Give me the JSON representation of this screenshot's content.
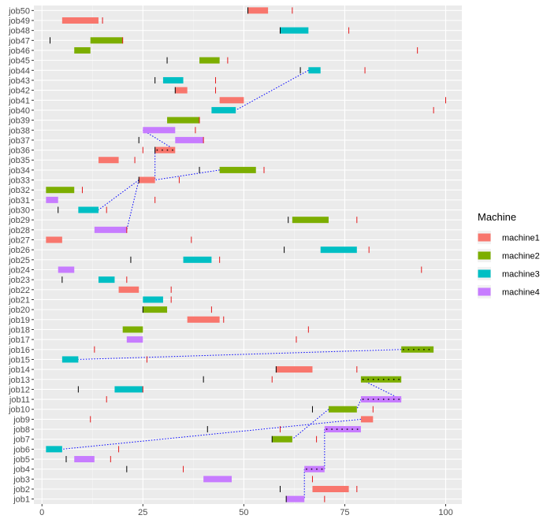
{
  "chart_data": {
    "type": "gantt",
    "xlim": [
      -2,
      104
    ],
    "x_ticks": [
      0,
      25,
      50,
      75,
      100
    ],
    "x_tick_labels": [
      "0",
      "25",
      "50",
      "75",
      "100"
    ],
    "grid": true,
    "legend": {
      "title": "Machine",
      "placement": "right",
      "items": [
        {
          "name": "machine1",
          "color": "#F8766D"
        },
        {
          "name": "machine2",
          "color": "#7CAE00"
        },
        {
          "name": "machine3",
          "color": "#00BFC4"
        },
        {
          "name": "machine4",
          "color": "#C77CFF"
        }
      ]
    },
    "jobs": [
      {
        "job": "job1",
        "machine": "machine4",
        "start": 60.5,
        "end": 65,
        "release": 60.5,
        "due": 70
      },
      {
        "job": "job2",
        "machine": "machine1",
        "start": 67,
        "end": 76,
        "release": 59,
        "due": 78
      },
      {
        "job": "job3",
        "machine": "machine4",
        "start": 40,
        "end": 47,
        "release": null,
        "due": 67
      },
      {
        "job": "job4",
        "machine": "machine4",
        "start": 65,
        "end": 70,
        "release": 21,
        "due": 35,
        "critical": true
      },
      {
        "job": "job5",
        "machine": "machine4",
        "start": 8,
        "end": 13,
        "release": 6,
        "due": 17
      },
      {
        "job": "job6",
        "machine": "machine3",
        "start": 1,
        "end": 5,
        "release": null,
        "due": 19
      },
      {
        "job": "job7",
        "machine": "machine2",
        "start": 57,
        "end": 62,
        "release": 57,
        "due": 68
      },
      {
        "job": "job8",
        "machine": "machine4",
        "start": 70,
        "end": 79,
        "release": 41,
        "due": 59,
        "critical": true
      },
      {
        "job": "job9",
        "machine": "machine1",
        "start": 79,
        "end": 82,
        "release": null,
        "due": 12
      },
      {
        "job": "job10",
        "machine": "machine2",
        "start": 71,
        "end": 78,
        "release": 67,
        "due": 82
      },
      {
        "job": "job11",
        "machine": "machine4",
        "start": 79,
        "end": 89,
        "release": null,
        "due": 16,
        "critical": true
      },
      {
        "job": "job12",
        "machine": "machine3",
        "start": 18,
        "end": 25,
        "release": 9,
        "due": 25
      },
      {
        "job": "job13",
        "machine": "machine2",
        "start": 79,
        "end": 89,
        "release": 40,
        "due": 57,
        "critical": true
      },
      {
        "job": "job14",
        "machine": "machine1",
        "start": 58,
        "end": 67,
        "release": 58,
        "due": 78
      },
      {
        "job": "job15",
        "machine": "machine3",
        "start": 5,
        "end": 9,
        "release": null,
        "due": 26
      },
      {
        "job": "job16",
        "machine": "machine2",
        "start": 89,
        "end": 97,
        "release": null,
        "due": 13,
        "critical": true
      },
      {
        "job": "job17",
        "machine": "machine4",
        "start": 21,
        "end": 25,
        "release": null,
        "due": 63
      },
      {
        "job": "job18",
        "machine": "machine2",
        "start": 20,
        "end": 25,
        "release": null,
        "due": 66
      },
      {
        "job": "job19",
        "machine": "machine1",
        "start": 36,
        "end": 44,
        "release": null,
        "due": 45
      },
      {
        "job": "job20",
        "machine": "machine2",
        "start": 25,
        "end": 31,
        "release": 25,
        "due": 42
      },
      {
        "job": "job21",
        "machine": "machine3",
        "start": 25,
        "end": 30,
        "release": null,
        "due": 32
      },
      {
        "job": "job22",
        "machine": "machine1",
        "start": 19,
        "end": 24,
        "release": null,
        "due": 32
      },
      {
        "job": "job23",
        "machine": "machine3",
        "start": 14,
        "end": 18,
        "release": 5,
        "due": 21
      },
      {
        "job": "job24",
        "machine": "machine4",
        "start": 4,
        "end": 8,
        "release": null,
        "due": 94
      },
      {
        "job": "job25",
        "machine": "machine3",
        "start": 35,
        "end": 42,
        "release": 22,
        "due": 44
      },
      {
        "job": "job26",
        "machine": "machine3",
        "start": 69,
        "end": 78,
        "release": 60,
        "due": 81
      },
      {
        "job": "job27",
        "machine": "machine1",
        "start": 1,
        "end": 5,
        "release": null,
        "due": 37
      },
      {
        "job": "job28",
        "machine": "machine4",
        "start": 13,
        "end": 21,
        "release": null,
        "due": 21
      },
      {
        "job": "job29",
        "machine": "machine2",
        "start": 62,
        "end": 71,
        "release": 61,
        "due": 78
      },
      {
        "job": "job30",
        "machine": "machine3",
        "start": 9,
        "end": 14,
        "release": 4,
        "due": 16
      },
      {
        "job": "job31",
        "machine": "machine4",
        "start": 1,
        "end": 4,
        "release": null,
        "due": 28
      },
      {
        "job": "job32",
        "machine": "machine2",
        "start": 1,
        "end": 8,
        "release": null,
        "due": 10
      },
      {
        "job": "job33",
        "machine": "machine1",
        "start": 24,
        "end": 28,
        "release": 24,
        "due": 34
      },
      {
        "job": "job34",
        "machine": "machine2",
        "start": 44,
        "end": 53,
        "release": 39,
        "due": 55
      },
      {
        "job": "job35",
        "machine": "machine1",
        "start": 14,
        "end": 19,
        "release": null,
        "due": 23
      },
      {
        "job": "job36",
        "machine": "machine1",
        "start": 28,
        "end": 33,
        "release": 28,
        "due": 25,
        "critical": true
      },
      {
        "job": "job37",
        "machine": "machine4",
        "start": 33,
        "end": 40,
        "release": 24,
        "due": 40
      },
      {
        "job": "job38",
        "machine": "machine4",
        "start": 25,
        "end": 33,
        "release": null,
        "due": 38
      },
      {
        "job": "job39",
        "machine": "machine2",
        "start": 31,
        "end": 39,
        "release": null,
        "due": 39
      },
      {
        "job": "job40",
        "machine": "machine3",
        "start": 42,
        "end": 48,
        "release": null,
        "due": 97
      },
      {
        "job": "job41",
        "machine": "machine1",
        "start": 44,
        "end": 50,
        "release": null,
        "due": 100
      },
      {
        "job": "job42",
        "machine": "machine1",
        "start": 33,
        "end": 36,
        "release": 33,
        "due": 43
      },
      {
        "job": "job43",
        "machine": "machine3",
        "start": 30,
        "end": 35,
        "release": 28,
        "due": 43
      },
      {
        "job": "job44",
        "machine": "machine3",
        "start": 66,
        "end": 69,
        "release": 64,
        "due": 80
      },
      {
        "job": "job45",
        "machine": "machine2",
        "start": 39,
        "end": 44,
        "release": 31,
        "due": 46
      },
      {
        "job": "job46",
        "machine": "machine2",
        "start": 8,
        "end": 12,
        "release": null,
        "due": 93
      },
      {
        "job": "job47",
        "machine": "machine2",
        "start": 12,
        "end": 20,
        "release": 2,
        "due": 20
      },
      {
        "job": "job48",
        "machine": "machine3",
        "start": 59,
        "end": 66,
        "release": 59,
        "due": 76
      },
      {
        "job": "job49",
        "machine": "machine1",
        "start": 5,
        "end": 14,
        "release": null,
        "due": 15
      },
      {
        "job": "job50",
        "machine": "machine1",
        "start": 51,
        "end": 56,
        "release": 51,
        "due": 62
      }
    ],
    "precedence_links": [
      {
        "from": "job44",
        "to": "job40"
      },
      {
        "from": "job38",
        "to": "job36"
      },
      {
        "from": "job36",
        "to": "job33"
      },
      {
        "from": "job34",
        "to": "job33"
      },
      {
        "from": "job33",
        "to": "job30"
      },
      {
        "from": "job33",
        "to": "job28"
      },
      {
        "from": "job16",
        "to": "job15"
      },
      {
        "from": "job13",
        "to": "job11"
      },
      {
        "from": "job11",
        "to": "job10"
      },
      {
        "from": "job10",
        "to": "job7"
      },
      {
        "from": "job9",
        "to": "job6"
      },
      {
        "from": "job8",
        "to": "job4"
      },
      {
        "from": "job4",
        "to": "job1"
      }
    ]
  }
}
